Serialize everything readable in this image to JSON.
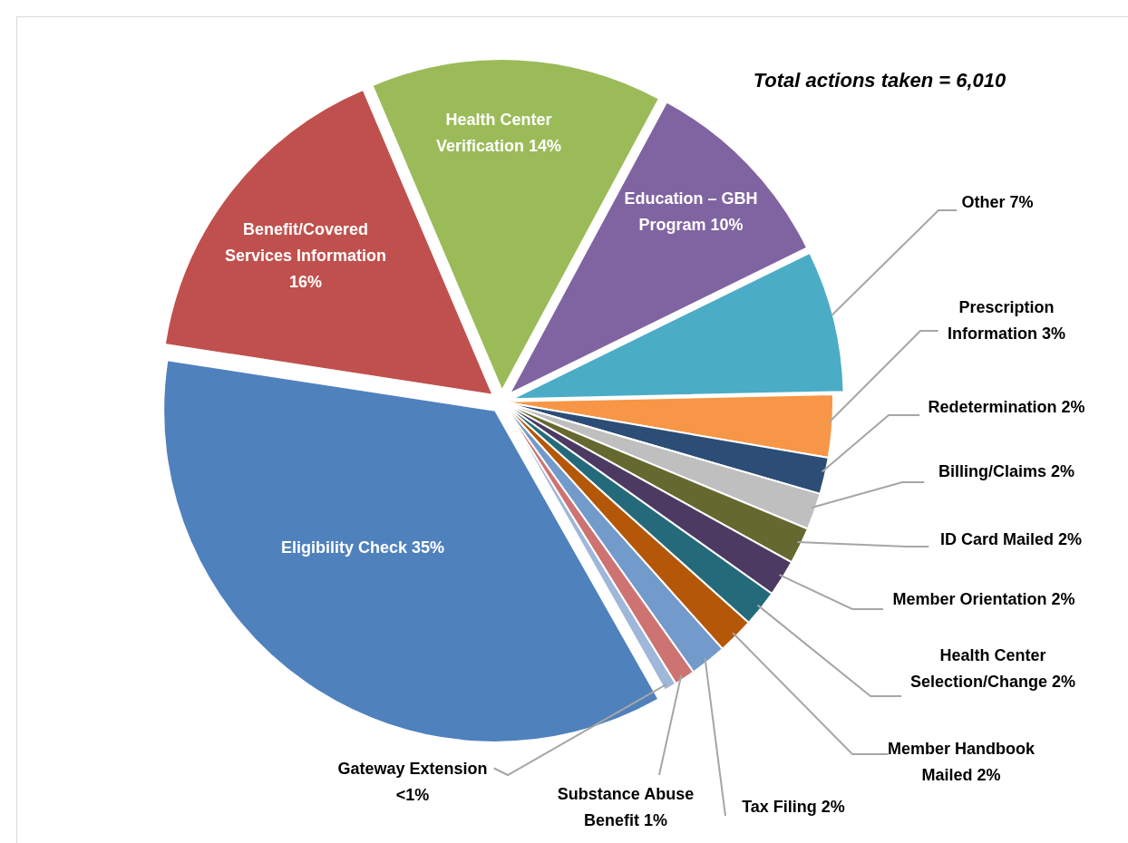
{
  "chart_data": {
    "type": "pie",
    "categories": [
      "Health Center\nVerification",
      "Education – GBH\nProgram",
      "Other",
      "Prescription\nInformation",
      "Redetermination",
      "Billing/Claims",
      "ID Card Mailed",
      "Member Orientation",
      "Health Center\nSelection/Change",
      "Member Handbook\nMailed",
      "Tax Filing",
      "Substance Abuse\nBenefit",
      "Gateway Extension",
      "Eligibility Check",
      "Benefit/Covered\nServices Information"
    ],
    "values": [
      14.0,
      9.7,
      6.8,
      3.0,
      1.75,
      1.75,
      1.75,
      1.75,
      1.75,
      1.75,
      1.75,
      1.0,
      0.6,
      35.0,
      15.9
    ],
    "value_labels": [
      "14%",
      "10%",
      "7%",
      "3%",
      "2%",
      "2%",
      "2%",
      "2%",
      "2%",
      "2%",
      "2%",
      "1%",
      "\n<1%",
      "35%",
      "\n16%"
    ],
    "colors": [
      "#9bbb59",
      "#8064a2",
      "#4bacc6",
      "#f79646",
      "#2c4d75",
      "#bfbfbf",
      "#66692f",
      "#4d3a62",
      "#256a7a",
      "#b55708",
      "#729aca",
      "#cd7371",
      "#9fb7d9",
      "#4f81bd",
      "#c0504d"
    ],
    "annotations": [
      "Total actions taken = 6,010"
    ]
  }
}
